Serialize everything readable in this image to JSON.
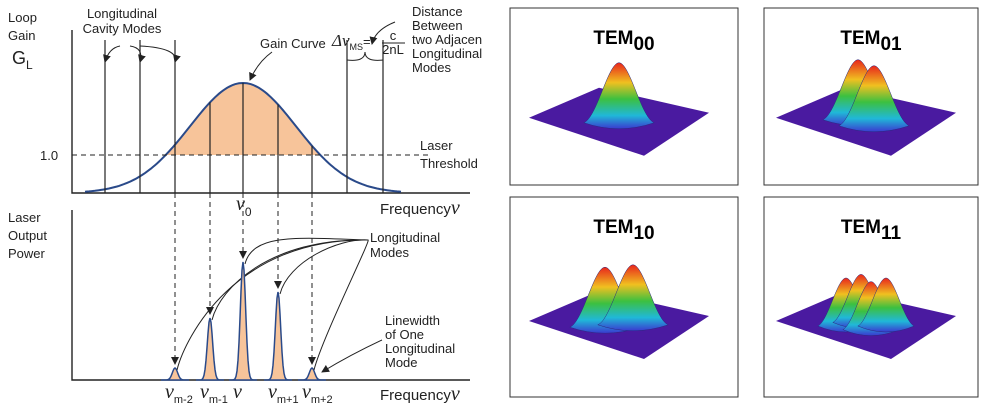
{
  "gain_panel": {
    "y_label": [
      "Loop",
      "Gain"
    ],
    "y_symbol": "G",
    "y_symbol_sub": "L",
    "cavity_modes_label": [
      "Longitudinal",
      "Cavity Modes"
    ],
    "gain_curve_label": "Gain Curve",
    "spacing_label": [
      "Distance",
      "Between",
      "two Adjacen",
      "Longitudinal",
      "Modes"
    ],
    "spacing_formula": {
      "symbol": "Δν",
      "sub": "MS",
      "equals": "=",
      "numerator": "c",
      "denominator": "2nL"
    },
    "threshold_value": "1.0",
    "threshold_label": [
      "Laser",
      "Threshold"
    ],
    "x_label": "Frequency",
    "x_symbol": "ν",
    "center_symbol": "ν",
    "center_sub": "0"
  },
  "power_panel": {
    "y_label": [
      "Laser",
      "Output",
      "Power"
    ],
    "modes_label": [
      "Longitudinal",
      "Modes"
    ],
    "linewidth_label": [
      "Linewidth",
      "of One",
      "Longitudinal",
      "Mode"
    ],
    "x_label": "Frequency",
    "x_symbol": "ν",
    "mode_labels": [
      {
        "symbol": "ν",
        "sub": "m-2"
      },
      {
        "symbol": "ν",
        "sub": "m-1"
      },
      {
        "symbol": "ν"
      },
      {
        "symbol": "ν",
        "sub": "m+1"
      },
      {
        "symbol": "ν",
        "sub": "m+2"
      }
    ]
  },
  "tem_modes": [
    {
      "name": "TEM",
      "sub": "00"
    },
    {
      "name": "TEM",
      "sub": "01"
    },
    {
      "name": "TEM",
      "sub": "10"
    },
    {
      "name": "TEM",
      "sub": "11"
    }
  ]
}
